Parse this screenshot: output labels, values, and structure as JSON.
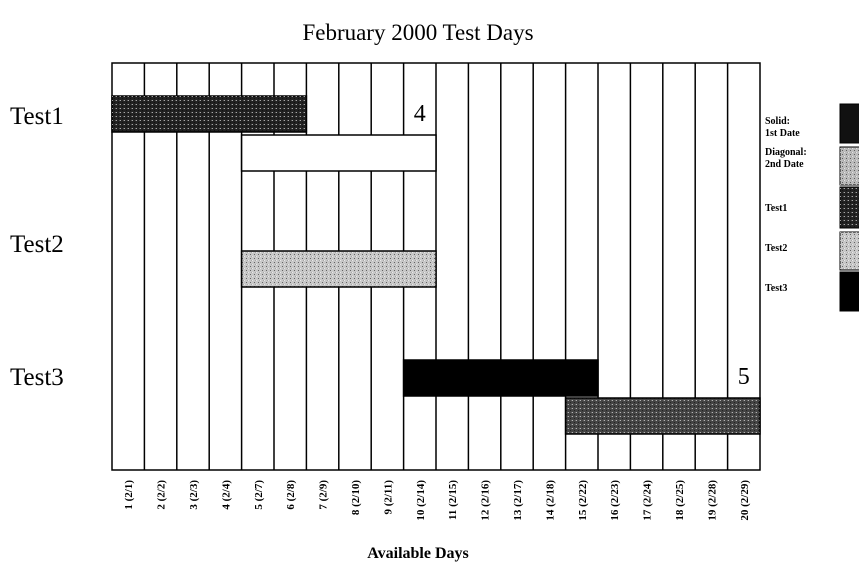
{
  "chart_data": {
    "type": "gantt",
    "title": "February 2000 Test Days",
    "x_label": "Available Days",
    "categories": [
      "1 (2/1)",
      "2 (2/2)",
      "3 (2/3)",
      "4 (2/4)",
      "5 (2/7)",
      "6 (2/8)",
      "7 (2/9)",
      "8 (2/10)",
      "9 (2/11)",
      "10 (2/14)",
      "11 (2/15)",
      "12 (2/16)",
      "13 (2/17)",
      "14 (2/18)",
      "15 (2/22)",
      "16 (2/23)",
      "17 (2/24)",
      "18 (2/25)",
      "19 (2/28)",
      "20 (2/29)"
    ],
    "tasks": [
      {
        "name": "Test1",
        "bars": [
          {
            "start": 1,
            "end": 6,
            "color": "#222222",
            "dotted": true
          },
          {
            "start": 5,
            "end": 10,
            "color": "#ffffff",
            "dotted": false
          }
        ],
        "annotation": {
          "text": "4",
          "day": 10
        }
      },
      {
        "name": "Test2",
        "bars": [
          {
            "start": 5,
            "end": 10,
            "color": "#c8c8c8",
            "dotted": true
          }
        ]
      },
      {
        "name": "Test3",
        "bars": [
          {
            "start": 10,
            "end": 15,
            "color": "#000000",
            "dotted": false
          },
          {
            "start": 15,
            "end": 20,
            "color": "#444444",
            "dotted": true
          }
        ],
        "annotation": {
          "text": "5",
          "day": 20
        }
      }
    ],
    "legend": [
      {
        "lines": [
          "Solid:",
          "1st Date"
        ],
        "color": "#111111",
        "dotted": false
      },
      {
        "lines": [
          "Diagonal:",
          "2nd Date"
        ],
        "color": "#bbbbbb",
        "dotted": true
      },
      {
        "lines": [
          "Test1"
        ],
        "color": "#222222",
        "dotted": true
      },
      {
        "lines": [
          "Test2"
        ],
        "color": "#c8c8c8",
        "dotted": true
      },
      {
        "lines": [
          "Test3"
        ],
        "color": "#000000",
        "dotted": false
      }
    ]
  }
}
